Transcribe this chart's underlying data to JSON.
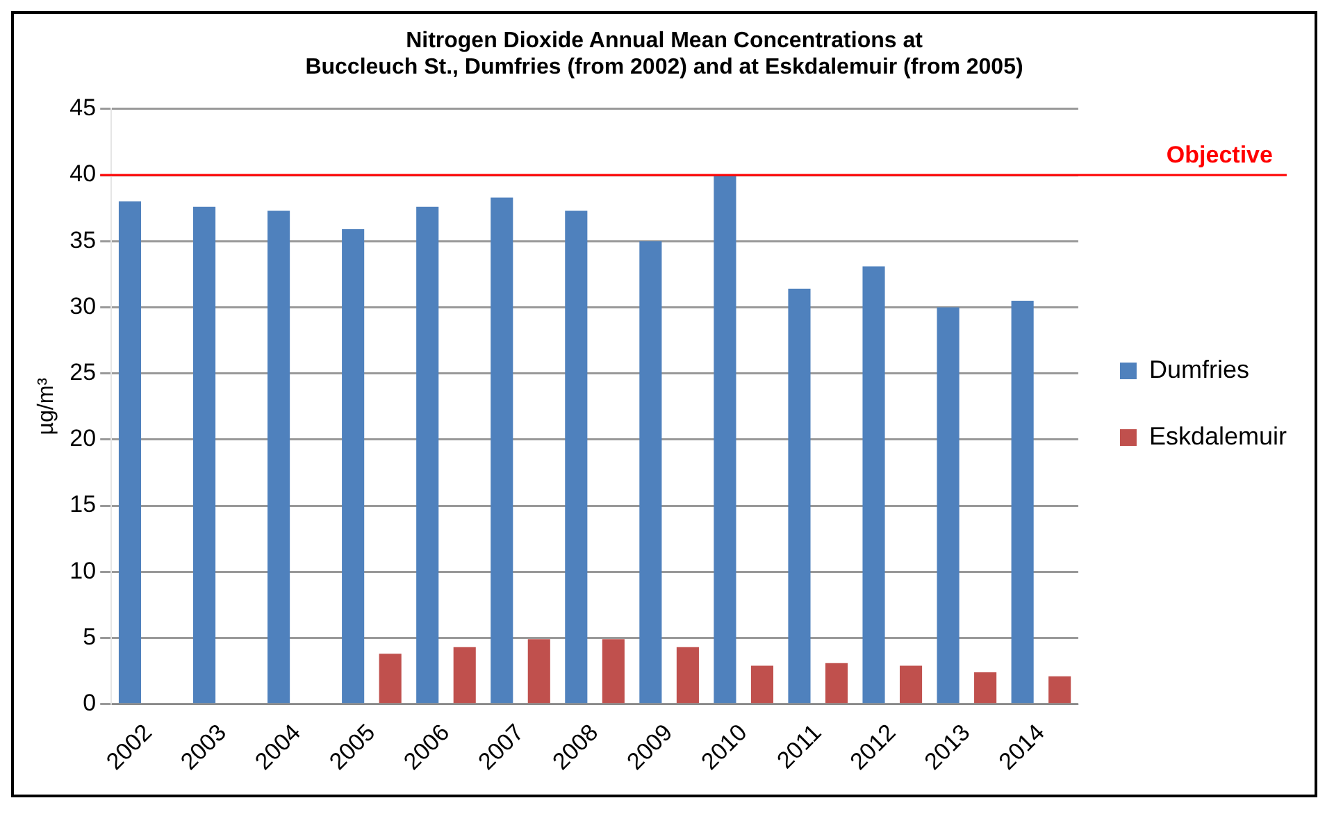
{
  "chart_data": {
    "type": "bar",
    "title": "Nitrogen Dioxide Annual Mean Concentrations at\nBuccleuch St., Dumfries (from 2002) and at Eskdalemuir (from 2005)",
    "ylabel": "µg/m³",
    "categories": [
      "2002",
      "2003",
      "2004",
      "2005",
      "2006",
      "2007",
      "2008",
      "2009",
      "2010",
      "2011",
      "2012",
      "2013",
      "2014"
    ],
    "series": [
      {
        "name": "Dumfries",
        "color": "#4f81bd",
        "values": [
          38.0,
          37.6,
          37.3,
          35.9,
          37.6,
          38.3,
          37.3,
          35.0,
          40.0,
          31.4,
          33.1,
          30.0,
          30.5
        ]
      },
      {
        "name": "Eskdalemuir",
        "color": "#c0504d",
        "values": [
          null,
          null,
          null,
          3.8,
          4.3,
          4.9,
          4.9,
          4.3,
          2.9,
          3.1,
          2.9,
          2.4,
          2.1
        ]
      }
    ],
    "ylim": [
      0,
      45
    ],
    "yticks": [
      0,
      5,
      10,
      15,
      20,
      25,
      30,
      35,
      40,
      45
    ],
    "grid": "y",
    "legend": "right",
    "ref_lines": [
      {
        "axis": "y",
        "value": 40,
        "label": "Objective",
        "color": "#ff0000"
      }
    ]
  }
}
